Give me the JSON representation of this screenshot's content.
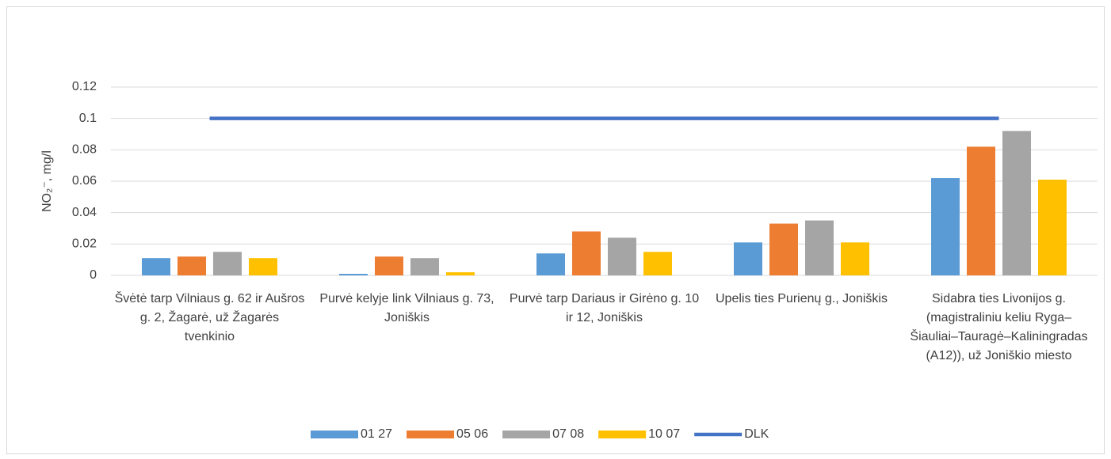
{
  "chart_data": {
    "type": "bar",
    "y_label": "NO₂⁻, mg/l",
    "categories": [
      "Švėtė tarp Vilniaus g. 62 ir Aušros g. 2, Žagarė, už Žagarės tvenkinio",
      "Purvė kelyje link Vilniaus g. 73, Joniškis",
      "Purvė tarp Dariaus ir Girėno g. 10 ir 12, Joniškis",
      "Upelis ties Purienų g., Joniškis",
      "Sidabra ties Livonijos g. (magistraliniu keliu Ryga–Šiauliai–Tauragė–Kaliningradas (A12)), už Joniškio miesto"
    ],
    "series": [
      {
        "name": "01 27",
        "color": "#5b9bd5",
        "values": [
          0.011,
          0.001,
          0.014,
          0.021,
          0.062
        ]
      },
      {
        "name": "05 06",
        "color": "#ed7d31",
        "values": [
          0.012,
          0.012,
          0.028,
          0.033,
          0.082
        ]
      },
      {
        "name": "07 08",
        "color": "#a5a5a5",
        "values": [
          0.015,
          0.011,
          0.024,
          0.035,
          0.092
        ]
      },
      {
        "name": "10 07",
        "color": "#ffc000",
        "values": [
          0.011,
          0.002,
          0.015,
          0.021,
          0.061
        ]
      },
      {
        "name": "DLK",
        "color": "#4472c4",
        "type": "line",
        "values": [
          0.1,
          0.1,
          0.1,
          0.1,
          0.1
        ]
      }
    ],
    "ylim": [
      0,
      0.12
    ],
    "yticks": [
      0,
      0.02,
      0.04,
      0.06,
      0.08,
      0.1,
      0.12
    ],
    "grid": true,
    "legend": "bottom"
  }
}
